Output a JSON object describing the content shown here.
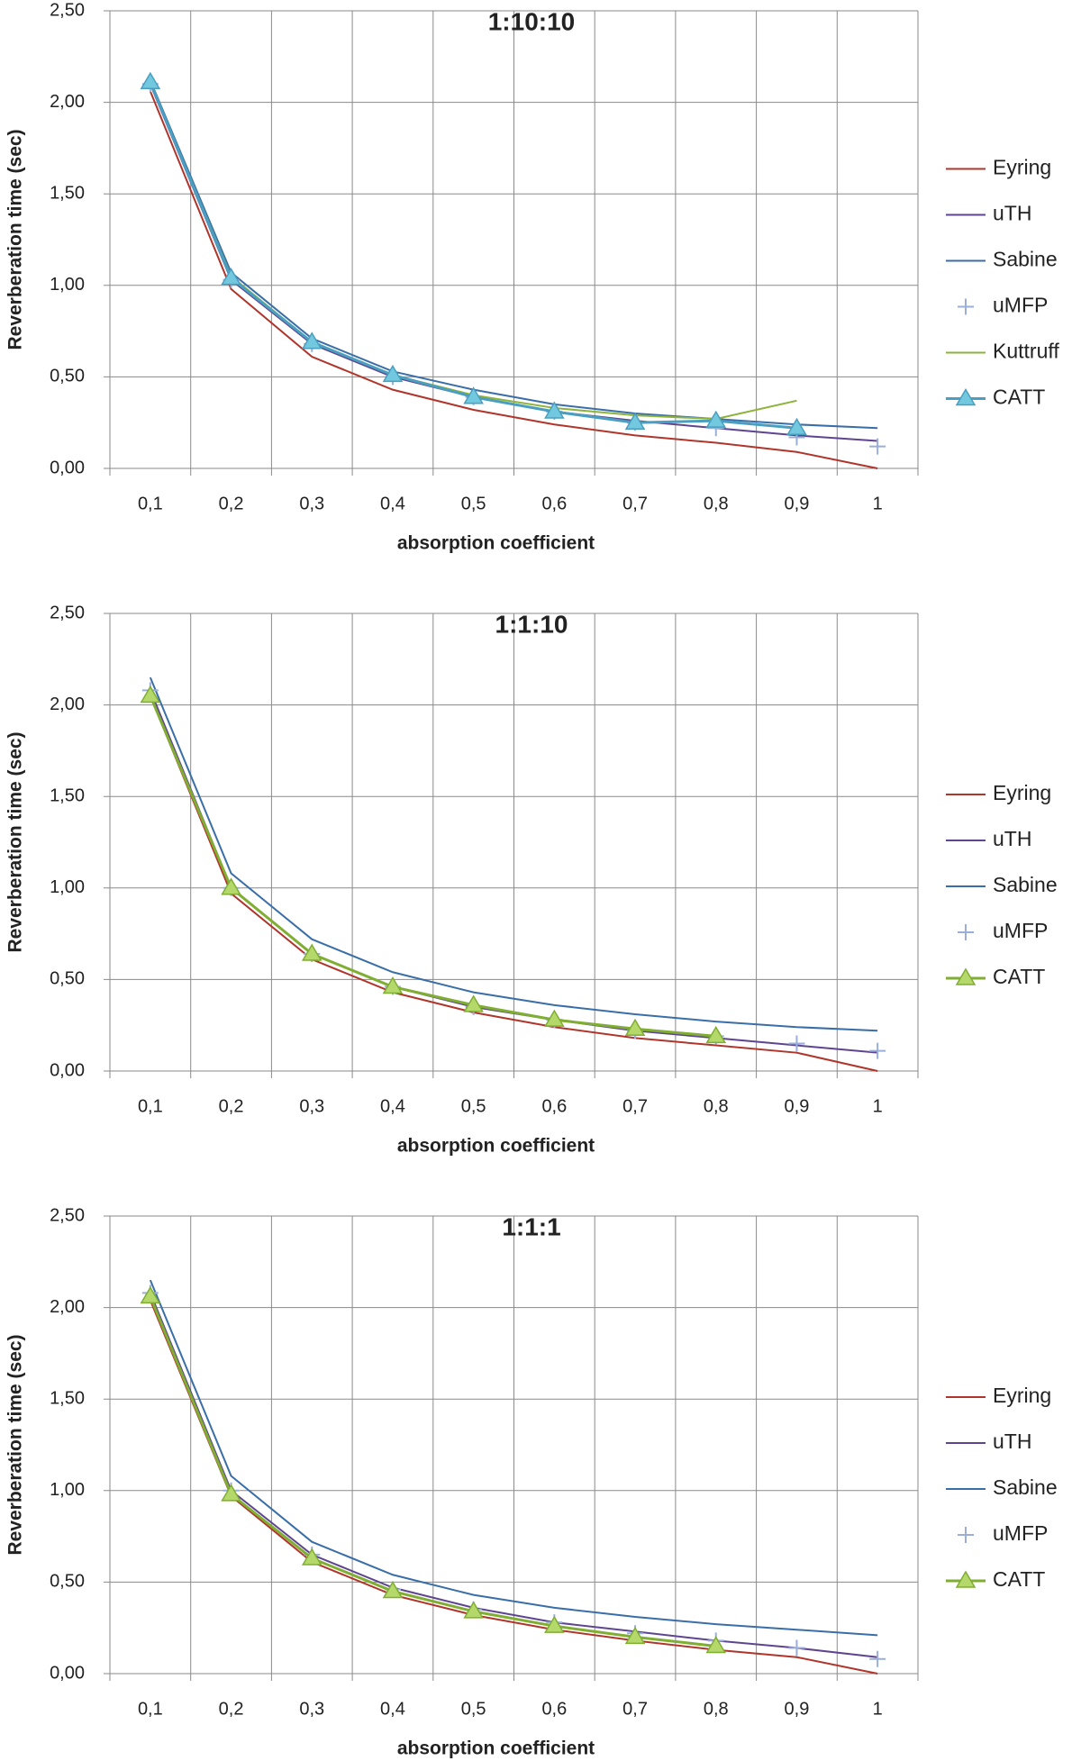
{
  "chart_data": [
    {
      "type": "line",
      "title": "1:10:10",
      "x_label": "absorption coefficient",
      "y_label": "Reverberation time (sec)",
      "categories": [
        "0,1",
        "0,2",
        "0,3",
        "0,4",
        "0,5",
        "0,6",
        "0,7",
        "0,8",
        "0,9",
        "1"
      ],
      "ylim": [
        0,
        2.5
      ],
      "yticks": [
        {
          "value": 0,
          "label": "0,00"
        },
        {
          "value": 0.5,
          "label": "0,50"
        },
        {
          "value": 1,
          "label": "1,00"
        },
        {
          "value": 1.5,
          "label": "1,50"
        },
        {
          "value": 2,
          "label": "2,00"
        },
        {
          "value": 2.5,
          "label": "2,50"
        }
      ],
      "grid": true,
      "series": [
        {
          "name": "Eyring",
          "color": "#b0352b",
          "values": [
            2.06,
            0.98,
            0.61,
            0.43,
            0.32,
            0.24,
            0.18,
            0.14,
            0.09,
            0.0
          ]
        },
        {
          "name": "uTH",
          "color": "#5e4590",
          "values": [
            2.1,
            1.03,
            0.68,
            0.5,
            0.39,
            0.31,
            0.26,
            0.22,
            0.18,
            0.15
          ]
        },
        {
          "name": "Sabine",
          "color": "#3a6ea8",
          "values": [
            2.12,
            1.07,
            0.71,
            0.53,
            0.43,
            0.35,
            0.3,
            0.27,
            0.24,
            0.22
          ]
        },
        {
          "name": "uMFP",
          "color": "#9aaed8",
          "line": false,
          "marker": "plus",
          "values": [
            2.1,
            1.03,
            0.68,
            0.5,
            0.39,
            0.31,
            0.25,
            0.22,
            0.17,
            0.12
          ]
        },
        {
          "name": "Kuttruff",
          "color": "#8db33a",
          "values": [
            2.11,
            1.05,
            0.69,
            0.51,
            0.4,
            0.33,
            0.29,
            0.27,
            0.37,
            null
          ]
        },
        {
          "name": "CATT",
          "color": "#4a9fc0",
          "marker": "triangle",
          "marker_fill": "#72c8de",
          "values": [
            2.11,
            1.04,
            0.69,
            0.51,
            0.39,
            0.31,
            0.25,
            0.26,
            0.22,
            null
          ]
        }
      ]
    },
    {
      "type": "line",
      "title": "1:1:10",
      "x_label": "absorption coefficient",
      "y_label": "Reverberation time (sec)",
      "categories": [
        "0,1",
        "0,2",
        "0,3",
        "0,4",
        "0,5",
        "0,6",
        "0,7",
        "0,8",
        "0,9",
        "1"
      ],
      "ylim": [
        0,
        2.5
      ],
      "yticks": [
        {
          "value": 0,
          "label": "0,00"
        },
        {
          "value": 0.5,
          "label": "0,50"
        },
        {
          "value": 1,
          "label": "1,00"
        },
        {
          "value": 1.5,
          "label": "1,50"
        },
        {
          "value": 2,
          "label": "2,00"
        },
        {
          "value": 2.5,
          "label": "2,50"
        }
      ],
      "grid": true,
      "series": [
        {
          "name": "Eyring",
          "color": "#b0352b",
          "values": [
            2.05,
            0.97,
            0.61,
            0.43,
            0.32,
            0.24,
            0.18,
            0.14,
            0.1,
            0.0
          ]
        },
        {
          "name": "uTH",
          "color": "#5e4590",
          "values": [
            2.08,
            1.0,
            0.64,
            0.46,
            0.35,
            0.28,
            0.22,
            0.18,
            0.14,
            0.1
          ]
        },
        {
          "name": "Sabine",
          "color": "#3a6ea8",
          "values": [
            2.15,
            1.08,
            0.72,
            0.54,
            0.43,
            0.36,
            0.31,
            0.27,
            0.24,
            0.22
          ]
        },
        {
          "name": "uMFP",
          "color": "#9aaed8",
          "line": false,
          "marker": "plus",
          "values": [
            2.08,
            1.0,
            0.64,
            0.46,
            0.35,
            0.28,
            0.22,
            0.19,
            0.15,
            0.11
          ]
        },
        {
          "name": "CATT",
          "color": "#7fae32",
          "marker": "triangle",
          "marker_fill": "#b5d86a",
          "values": [
            2.05,
            1.0,
            0.64,
            0.46,
            0.36,
            0.28,
            0.23,
            0.19,
            null,
            null
          ]
        }
      ]
    },
    {
      "type": "line",
      "title": "1:1:1",
      "x_label": "absorption coefficient",
      "y_label": "Reverberation time (sec)",
      "categories": [
        "0,1",
        "0,2",
        "0,3",
        "0,4",
        "0,5",
        "0,6",
        "0,7",
        "0,8",
        "0,9",
        "1"
      ],
      "ylim": [
        0,
        2.5
      ],
      "yticks": [
        {
          "value": 0,
          "label": "0,00"
        },
        {
          "value": 0.5,
          "label": "0,50"
        },
        {
          "value": 1,
          "label": "1,00"
        },
        {
          "value": 1.5,
          "label": "1,50"
        },
        {
          "value": 2,
          "label": "2,00"
        },
        {
          "value": 2.5,
          "label": "2,50"
        }
      ],
      "grid": true,
      "series": [
        {
          "name": "Eyring",
          "color": "#b0352b",
          "values": [
            2.04,
            0.97,
            0.61,
            0.43,
            0.32,
            0.24,
            0.18,
            0.13,
            0.09,
            0.0
          ]
        },
        {
          "name": "uTH",
          "color": "#5e4590",
          "values": [
            2.08,
            1.0,
            0.65,
            0.47,
            0.36,
            0.28,
            0.23,
            0.18,
            0.14,
            0.09
          ]
        },
        {
          "name": "Sabine",
          "color": "#3a6ea8",
          "values": [
            2.15,
            1.08,
            0.72,
            0.54,
            0.43,
            0.36,
            0.31,
            0.27,
            0.24,
            0.21
          ]
        },
        {
          "name": "uMFP",
          "color": "#9aaed8",
          "line": false,
          "marker": "plus",
          "values": [
            2.08,
            1.0,
            0.65,
            0.46,
            0.35,
            0.28,
            0.22,
            0.18,
            0.14,
            0.08
          ]
        },
        {
          "name": "CATT",
          "color": "#7fae32",
          "marker": "triangle",
          "marker_fill": "#b5d86a",
          "values": [
            2.06,
            0.98,
            0.63,
            0.45,
            0.34,
            0.26,
            0.2,
            0.15,
            null,
            null
          ]
        }
      ]
    }
  ]
}
